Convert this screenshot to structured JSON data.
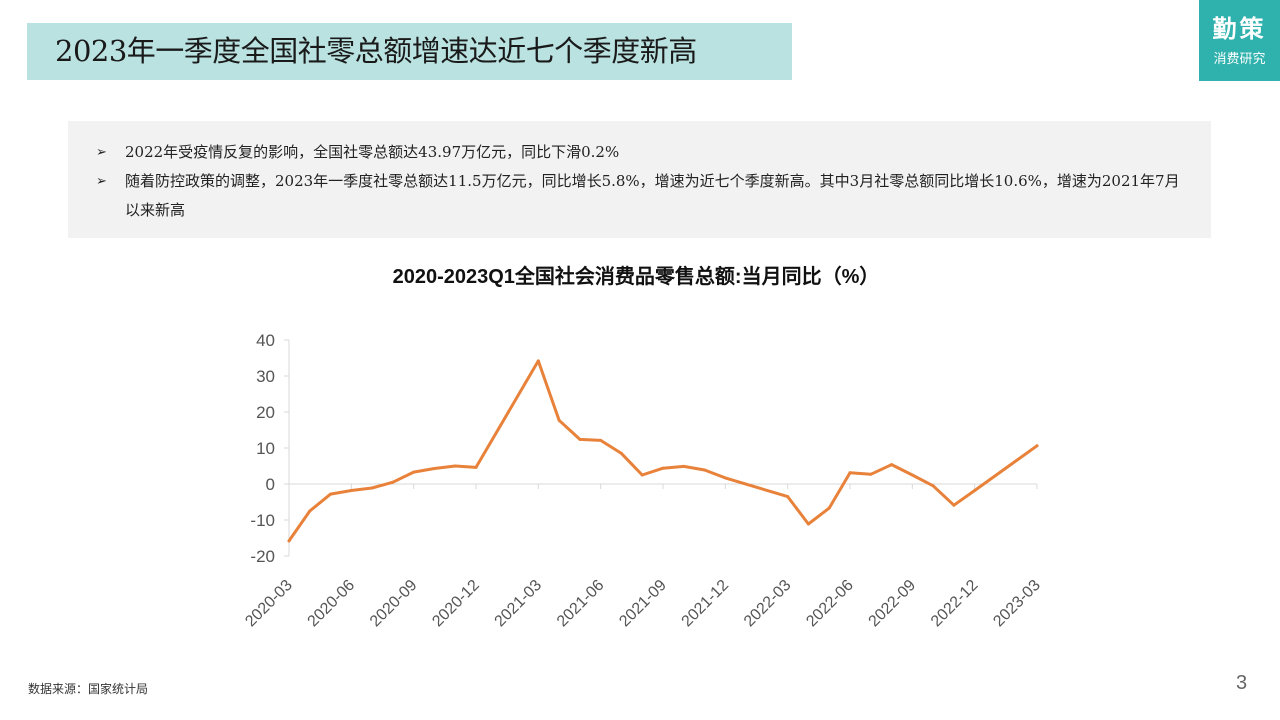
{
  "title": "2023年一季度全国社零总额增速达近七个季度新高",
  "logo": {
    "main": "勤策",
    "sub": "消费研究"
  },
  "summary": {
    "bullet_mark": "➢",
    "bullets": [
      "2022年受疫情反复的影响，全国社零总额达43.97万亿元，同比下滑0.2%",
      "随着防控政策的调整，2023年一季度社零总额达11.5万亿元，同比增长5.8%，增速为近七个季度新高。其中3月社零总额同比增长10.6%，增速为2021年7月以来新高"
    ]
  },
  "chart_data": {
    "type": "line",
    "title": "2020-2023Q1全国社会消费品零售总额:当月同比（%）",
    "xlabel": "",
    "ylabel": "",
    "ylim": [
      -20,
      40
    ],
    "yticks": [
      40,
      30,
      20,
      10,
      0,
      -10,
      -20
    ],
    "grid": false,
    "line_color": "#e8823a",
    "x": [
      "2020-03",
      "2020-04",
      "2020-05",
      "2020-06",
      "2020-07",
      "2020-08",
      "2020-09",
      "2020-10",
      "2020-11",
      "2020-12",
      "2021-03",
      "2021-04",
      "2021-05",
      "2021-06",
      "2021-07",
      "2021-08",
      "2021-09",
      "2021-10",
      "2021-11",
      "2021-12",
      "2022-03",
      "2022-04",
      "2022-05",
      "2022-06",
      "2022-07",
      "2022-08",
      "2022-09",
      "2022-10",
      "2022-11",
      "2022-12",
      "2023-03"
    ],
    "x_index": [
      0,
      1,
      2,
      3,
      4,
      5,
      6,
      7,
      8,
      9,
      12,
      13,
      14,
      15,
      16,
      17,
      18,
      19,
      20,
      21,
      24,
      25,
      26,
      27,
      28,
      29,
      30,
      31,
      32,
      33,
      36
    ],
    "values": [
      -15.8,
      -7.5,
      -2.8,
      -1.8,
      -1.1,
      0.5,
      3.3,
      4.3,
      5.0,
      4.6,
      34.2,
      17.7,
      12.4,
      12.1,
      8.5,
      2.5,
      4.4,
      4.9,
      3.9,
      1.7,
      -3.5,
      -11.1,
      -6.7,
      3.1,
      2.7,
      5.4,
      2.5,
      -0.5,
      -5.9,
      -1.8,
      10.6
    ],
    "xtick_labels": [
      "2020-03",
      "2020-06",
      "2020-09",
      "2020-12",
      "2021-03",
      "2021-06",
      "2021-09",
      "2021-12",
      "2022-03",
      "2022-06",
      "2022-09",
      "2022-12",
      "2023-03"
    ],
    "xtick_index": [
      0,
      3,
      6,
      9,
      12,
      15,
      18,
      21,
      24,
      27,
      30,
      33,
      36
    ]
  },
  "source": "数据来源：国家统计局",
  "page_number": "3"
}
